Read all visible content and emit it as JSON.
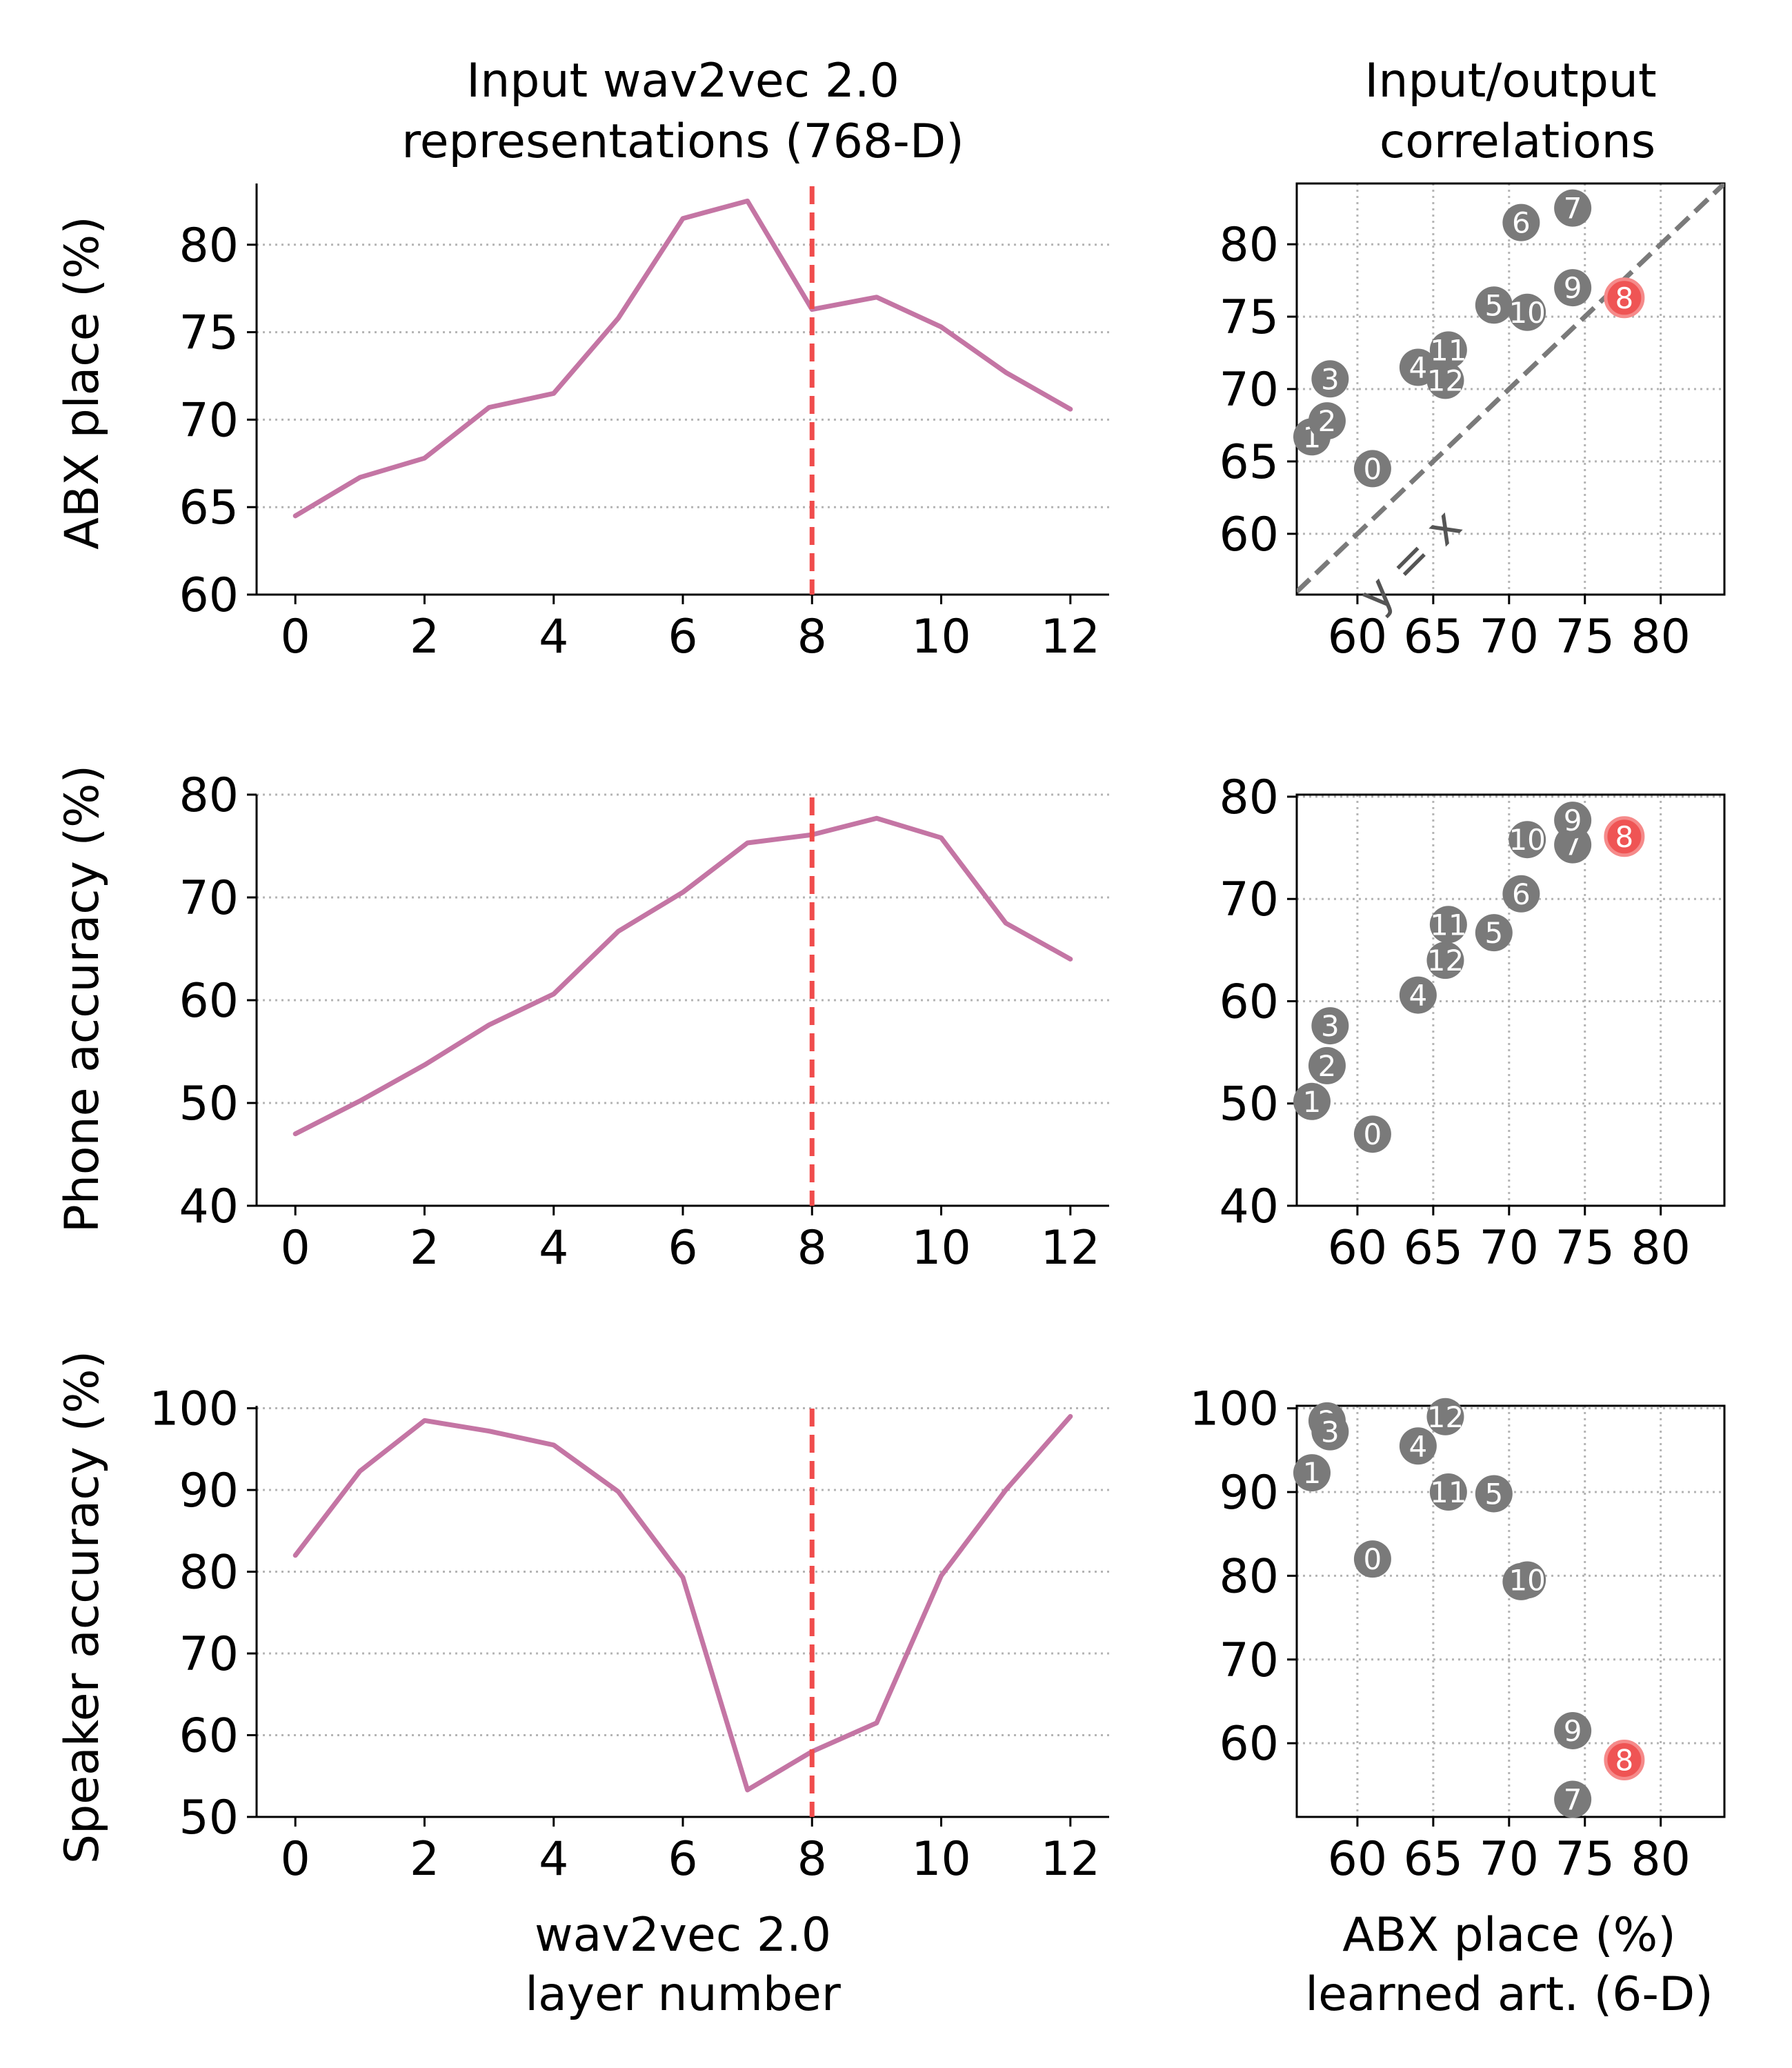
{
  "colors": {
    "line": "#c475a4",
    "marker": "#f04c4c",
    "point": "#7a7a7a",
    "highlight": "#ef5454",
    "diagonal": "#7a7a7a",
    "grid": "#b4b4b4"
  },
  "column_titles": {
    "left": [
      "Input wav2vec 2.0",
      "representations (768-D)"
    ],
    "right": [
      "Input/output",
      "correlations"
    ]
  },
  "x_axis_titles": {
    "left": [
      "wav2vec 2.0",
      "layer number"
    ],
    "right": [
      "ABX place (%)",
      "learned art. (6-D)"
    ]
  },
  "diagonal_label": "y = x",
  "chart_data": [
    {
      "id": "abx-line",
      "type": "line",
      "ylabel": "ABX place (%)",
      "x": [
        0,
        1,
        2,
        3,
        4,
        5,
        6,
        7,
        8,
        9,
        10,
        11,
        12
      ],
      "values": [
        64.5,
        66.7,
        67.8,
        70.7,
        71.5,
        75.8,
        81.5,
        82.5,
        76.3,
        77.0,
        75.3,
        72.7,
        70.6
      ],
      "xlim": [
        -0.6,
        12.6
      ],
      "ylim": [
        60,
        83.5
      ],
      "xticks": [
        0,
        2,
        4,
        6,
        8,
        10,
        12
      ],
      "yticks": [
        60,
        65,
        70,
        75,
        80
      ],
      "marker_x": 8
    },
    {
      "id": "abx-scatter",
      "type": "scatter",
      "xlabel": "ABX place (%) learned art. (6-D)",
      "ylabel": "ABX place (%)",
      "xlim": [
        56,
        84.2
      ],
      "ylim": [
        55.8,
        84.2
      ],
      "xticks": [
        60,
        65,
        70,
        75,
        80
      ],
      "yticks": [
        60,
        65,
        70,
        75,
        80
      ],
      "diagonal": true,
      "highlight": "8",
      "points": [
        {
          "label": "0",
          "x": 61.0,
          "y": 64.5
        },
        {
          "label": "1",
          "x": 57.0,
          "y": 66.7
        },
        {
          "label": "2",
          "x": 58.0,
          "y": 67.8
        },
        {
          "label": "3",
          "x": 58.2,
          "y": 70.7
        },
        {
          "label": "4",
          "x": 64.0,
          "y": 71.5
        },
        {
          "label": "5",
          "x": 69.0,
          "y": 75.8
        },
        {
          "label": "6",
          "x": 70.8,
          "y": 81.5
        },
        {
          "label": "7",
          "x": 74.2,
          "y": 82.5
        },
        {
          "label": "8",
          "x": 77.6,
          "y": 76.3
        },
        {
          "label": "9",
          "x": 74.2,
          "y": 77.0
        },
        {
          "label": "10",
          "x": 71.2,
          "y": 75.3
        },
        {
          "label": "11",
          "x": 66.0,
          "y": 72.7
        },
        {
          "label": "12",
          "x": 65.8,
          "y": 70.6
        }
      ]
    },
    {
      "id": "phone-line",
      "type": "line",
      "ylabel": "Phone accuracy (%)",
      "x": [
        0,
        1,
        2,
        3,
        4,
        5,
        6,
        7,
        8,
        9,
        10,
        11,
        12
      ],
      "values": [
        47.0,
        50.2,
        53.7,
        57.6,
        60.6,
        66.7,
        70.5,
        75.3,
        76.1,
        77.7,
        75.8,
        67.5,
        64.0
      ],
      "xlim": [
        -0.6,
        12.6
      ],
      "ylim": [
        40,
        80
      ],
      "xticks": [
        0,
        2,
        4,
        6,
        8,
        10,
        12
      ],
      "yticks": [
        40,
        50,
        60,
        70,
        80
      ],
      "marker_x": 8
    },
    {
      "id": "phone-scatter",
      "type": "scatter",
      "xlabel": "ABX place (%) learned art. (6-D)",
      "ylabel": "Phone accuracy (%)",
      "xlim": [
        56,
        84.2
      ],
      "ylim": [
        40,
        80.2
      ],
      "xticks": [
        60,
        65,
        70,
        75,
        80
      ],
      "yticks": [
        40,
        50,
        60,
        70,
        80
      ],
      "diagonal": false,
      "highlight": "8",
      "points": [
        {
          "label": "0",
          "x": 61.0,
          "y": 47.0
        },
        {
          "label": "1",
          "x": 57.0,
          "y": 50.2
        },
        {
          "label": "2",
          "x": 58.0,
          "y": 53.7
        },
        {
          "label": "3",
          "x": 58.2,
          "y": 57.6
        },
        {
          "label": "4",
          "x": 64.0,
          "y": 60.6
        },
        {
          "label": "5",
          "x": 69.0,
          "y": 66.7
        },
        {
          "label": "6",
          "x": 70.8,
          "y": 70.5
        },
        {
          "label": "7",
          "x": 74.2,
          "y": 75.3
        },
        {
          "label": "8",
          "x": 77.6,
          "y": 76.1
        },
        {
          "label": "9",
          "x": 74.2,
          "y": 77.7
        },
        {
          "label": "10",
          "x": 71.2,
          "y": 75.8
        },
        {
          "label": "11",
          "x": 66.0,
          "y": 67.5
        },
        {
          "label": "12",
          "x": 65.8,
          "y": 64.0
        }
      ]
    },
    {
      "id": "speaker-line",
      "type": "line",
      "ylabel": "Speaker accuracy (%)",
      "x": [
        0,
        1,
        2,
        3,
        4,
        5,
        6,
        7,
        8,
        9,
        10,
        11,
        12
      ],
      "values": [
        82.0,
        92.3,
        98.5,
        97.2,
        95.5,
        89.8,
        79.3,
        53.3,
        58.0,
        61.5,
        79.5,
        90.0,
        99.0
      ],
      "xlim": [
        -0.6,
        12.6
      ],
      "ylim": [
        50,
        100.3
      ],
      "xticks": [
        0,
        2,
        4,
        6,
        8,
        10,
        12
      ],
      "yticks": [
        50,
        60,
        70,
        80,
        90,
        100
      ],
      "marker_x": 8
    },
    {
      "id": "speaker-scatter",
      "type": "scatter",
      "xlabel": "ABX place (%) learned art. (6-D)",
      "ylabel": "Speaker accuracy (%)",
      "xlim": [
        56,
        84.2
      ],
      "ylim": [
        51.2,
        100.3
      ],
      "xticks": [
        60,
        65,
        70,
        75,
        80
      ],
      "yticks": [
        60,
        70,
        80,
        90,
        100
      ],
      "diagonal": false,
      "highlight": "8",
      "points": [
        {
          "label": "0",
          "x": 61.0,
          "y": 82.0
        },
        {
          "label": "1",
          "x": 57.0,
          "y": 92.3
        },
        {
          "label": "2",
          "x": 58.0,
          "y": 98.5
        },
        {
          "label": "3",
          "x": 58.2,
          "y": 97.2
        },
        {
          "label": "4",
          "x": 64.0,
          "y": 95.5
        },
        {
          "label": "5",
          "x": 69.0,
          "y": 89.8
        },
        {
          "label": "6",
          "x": 70.8,
          "y": 79.3
        },
        {
          "label": "7",
          "x": 74.2,
          "y": 53.3
        },
        {
          "label": "8",
          "x": 77.6,
          "y": 58.0
        },
        {
          "label": "9",
          "x": 74.2,
          "y": 61.5
        },
        {
          "label": "10",
          "x": 71.2,
          "y": 79.5
        },
        {
          "label": "11",
          "x": 66.0,
          "y": 90.0
        },
        {
          "label": "12",
          "x": 65.8,
          "y": 99.0
        }
      ]
    }
  ]
}
